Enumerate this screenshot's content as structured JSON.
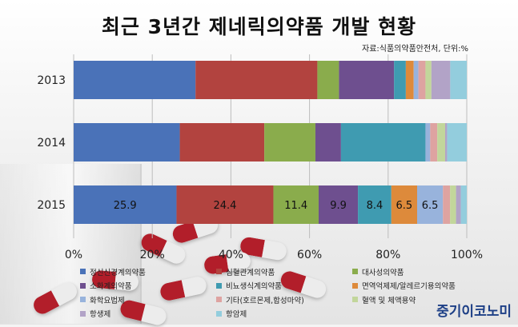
{
  "title": "최근 3년간 제네릭의약품 개발 현황",
  "source_note": "자료:식품의약품안전처, 단위:%",
  "brand": "중기이코노미",
  "chart_data": {
    "type": "bar",
    "orientation": "horizontal",
    "stacked": "percent",
    "categories": [
      "2013",
      "2014",
      "2015"
    ],
    "xlim": [
      0,
      100
    ],
    "xticks": [
      "0%",
      "20%",
      "40%",
      "60%",
      "80%",
      "100%"
    ],
    "grid": true,
    "legend_position": "bottom",
    "series": [
      {
        "name": "정신신경계의약품",
        "color": "#4a72b8",
        "values": [
          31,
          27,
          25.9
        ],
        "labels": [
          "",
          "",
          "25.9"
        ]
      },
      {
        "name": "심혈관계의약품",
        "color": "#b2433f",
        "values": [
          31,
          21.5,
          24.4
        ],
        "labels": [
          "",
          "",
          "24.4"
        ]
      },
      {
        "name": "대사성의약품",
        "color": "#8aac4c",
        "values": [
          5.5,
          13,
          11.4
        ],
        "labels": [
          "",
          "",
          "11.4"
        ]
      },
      {
        "name": "소화계의약품",
        "color": "#6e4f8f",
        "values": [
          14,
          6.5,
          9.9
        ],
        "labels": [
          "",
          "",
          "9.9"
        ]
      },
      {
        "name": "비뇨생식계의약품",
        "color": "#3f9bb1",
        "values": [
          3,
          21.5,
          8.4
        ],
        "labels": [
          "",
          "",
          "8.4"
        ]
      },
      {
        "name": "면역억제제/알레르기용의약품",
        "color": "#dd8a3b",
        "values": [
          2,
          0,
          6.5
        ],
        "labels": [
          "",
          "",
          "6.5"
        ]
      },
      {
        "name": "화학요법제",
        "color": "#98b3dc",
        "values": [
          1.2,
          1.2,
          6.5
        ],
        "labels": [
          "",
          "",
          "6.5"
        ]
      },
      {
        "name": "기타(호르몬제,합성마약)",
        "color": "#dea3a1",
        "values": [
          1.8,
          1.8,
          1.8
        ],
        "labels": [
          "",
          "",
          ""
        ]
      },
      {
        "name": "혈액 및 체액용약",
        "color": "#c2d69b",
        "values": [
          1.5,
          2,
          1.5
        ],
        "labels": [
          "",
          "",
          ""
        ]
      },
      {
        "name": "항생제",
        "color": "#b2a3c7",
        "values": [
          4.8,
          0.5,
          1.2
        ],
        "labels": [
          "",
          "",
          ""
        ]
      },
      {
        "name": "항암제",
        "color": "#93cddd",
        "values": [
          4.2,
          5,
          1.5
        ],
        "labels": [
          "",
          "",
          ""
        ]
      }
    ]
  }
}
